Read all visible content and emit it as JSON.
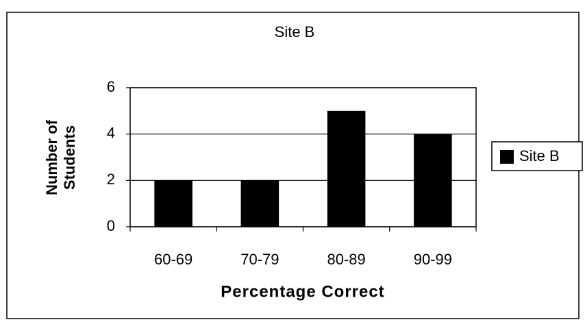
{
  "chart_data": {
    "type": "bar",
    "title": "Site B",
    "x_label": "Percentage Correct",
    "y_label": "Number of Students",
    "categories": [
      "60-69",
      "70-79",
      "80-89",
      "90-99"
    ],
    "series": [
      {
        "name": "Site B",
        "color": "#000000",
        "values": [
          2,
          2,
          5,
          4
        ]
      }
    ],
    "ylim": [
      0,
      6
    ],
    "yticks": [
      0,
      2,
      4,
      6
    ],
    "grid": true,
    "legend": "right"
  }
}
